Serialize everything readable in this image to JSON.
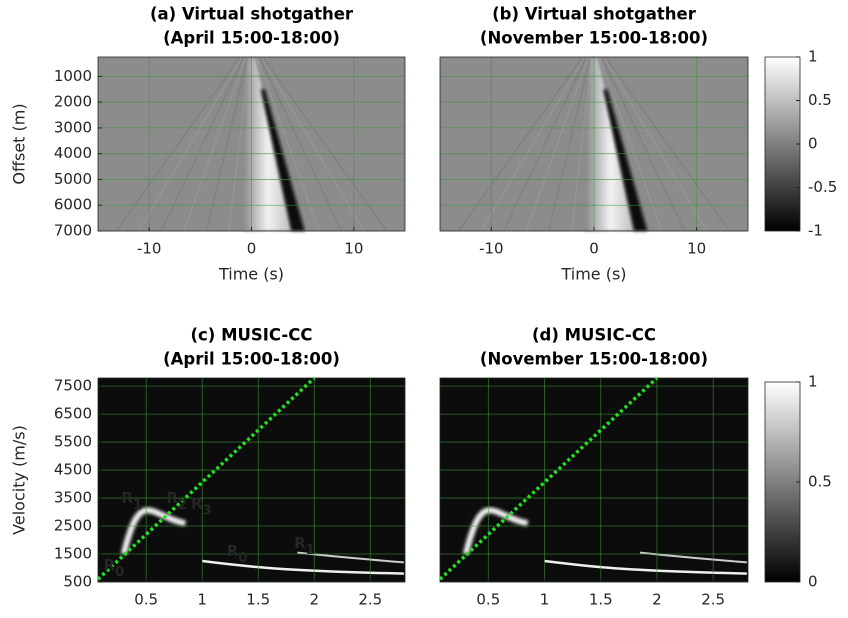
{
  "chart_data": [
    {
      "type": "image",
      "title": "(a) Virtual shotgather",
      "subtitle": "(April 15:00-18:00)",
      "xlabel": "Time (s)",
      "ylabel": "Offset (m)",
      "xlim": [
        -15,
        15
      ],
      "ylim": [
        250,
        7000
      ],
      "y_reversed": true,
      "xticks": [
        -10,
        0,
        10
      ],
      "yticks": [
        1000,
        2000,
        3000,
        4000,
        5000,
        6000,
        7000
      ],
      "grid": true,
      "grid_color": "#3a9a3a"
    },
    {
      "type": "image",
      "title": "(b) Virtual shotgather",
      "subtitle": "(November 15:00-18:00)",
      "xlabel": "Time (s)",
      "xlim": [
        -15,
        15
      ],
      "ylim": [
        250,
        7000
      ],
      "y_reversed": true,
      "xticks": [
        -10,
        0,
        10
      ],
      "grid": true,
      "grid_color": "#3a9a3a",
      "colorbar": {
        "lim": [
          -1,
          1
        ],
        "ticks": [
          1,
          0.5,
          0,
          -0.5,
          -1
        ]
      }
    },
    {
      "type": "image",
      "title": "(c) MUSIC-CC",
      "subtitle": "(April 15:00-18:00)",
      "xlabel": "Frequency (Hz)",
      "ylabel": "Velocity (m/s)",
      "xlim": [
        0.07,
        2.81
      ],
      "ylim": [
        500,
        7790
      ],
      "xticks": [
        0.5,
        1,
        1.5,
        2,
        2.5
      ],
      "yticks": [
        500,
        1500,
        2500,
        3500,
        4500,
        5500,
        6500,
        7500
      ],
      "grid": true,
      "grid_color": "#3a9a3a",
      "annotations": [
        {
          "text": "R",
          "sub": "1"
        },
        {
          "text": "R",
          "sub": "2"
        },
        {
          "text": "R",
          "sub": "3"
        },
        {
          "text": "R",
          "sub": "0"
        },
        {
          "text": "R",
          "sub": "0"
        },
        {
          "text": "R",
          "sub": "1"
        }
      ],
      "annotation_color": "#f5f500"
    },
    {
      "type": "image",
      "title": "(d) MUSIC-CC",
      "subtitle": "(November 15:00-18:00)",
      "xlabel": "Frequency (Hz)",
      "xlim": [
        0.07,
        2.81
      ],
      "ylim": [
        500,
        7790
      ],
      "xticks": [
        0.5,
        1,
        1.5,
        2,
        2.5
      ],
      "grid": true,
      "grid_color": "#3a9a3a",
      "colorbar": {
        "lim": [
          0,
          1
        ],
        "ticks": [
          1,
          0.5,
          0
        ]
      }
    }
  ]
}
